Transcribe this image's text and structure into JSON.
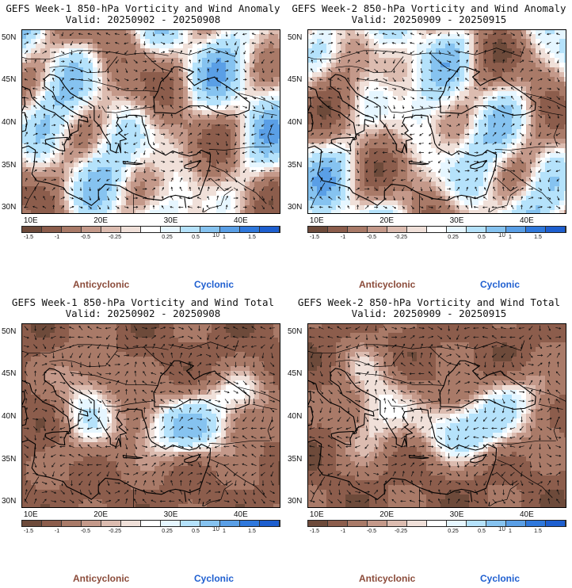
{
  "panels": [
    {
      "title1": "GEFS Week-1 850-hPa Vorticity and Wind Anomaly",
      "title2": "Valid: 20250902 - 20250908",
      "mode": "anom",
      "seed": 11
    },
    {
      "title1": "GEFS Week-2 850-hPa Vorticity and Wind Anomaly",
      "title2": "Valid: 20250909 - 20250915",
      "mode": "anom",
      "seed": 23
    },
    {
      "title1": "GEFS Week-1 850-hPa Vorticity and Wind Total",
      "title2": "Valid: 20250902 - 20250908",
      "mode": "total",
      "seed": 37
    },
    {
      "title1": "GEFS Week-2 850-hPa Vorticity and Wind Total",
      "title2": "Valid: 20250909 - 20250915",
      "mode": "total",
      "seed": 51
    }
  ],
  "lat_labels": [
    "50N",
    "45N",
    "40N",
    "35N",
    "30N"
  ],
  "lon_labels": [
    "10E",
    "20E",
    "30E",
    "40E"
  ],
  "colorbar": {
    "colors": [
      "#6d4a3a",
      "#8c5d4c",
      "#a97a68",
      "#c4998a",
      "#dcbcb0",
      "#f0e0d9",
      "#ffffff",
      "#e6f6ff",
      "#b5e2fb",
      "#86c3f0",
      "#5a9fe6",
      "#2f78dc",
      "#1e5fcf"
    ],
    "labels": [
      "-1.5",
      "-1",
      "-0.5",
      "-0.25",
      "0.25",
      "0.5",
      "1",
      "1.5"
    ],
    "exponent": "10"
  },
  "legend": {
    "anticyclonic": "Anticyclonic",
    "cyclonic": "Cyclonic"
  }
}
